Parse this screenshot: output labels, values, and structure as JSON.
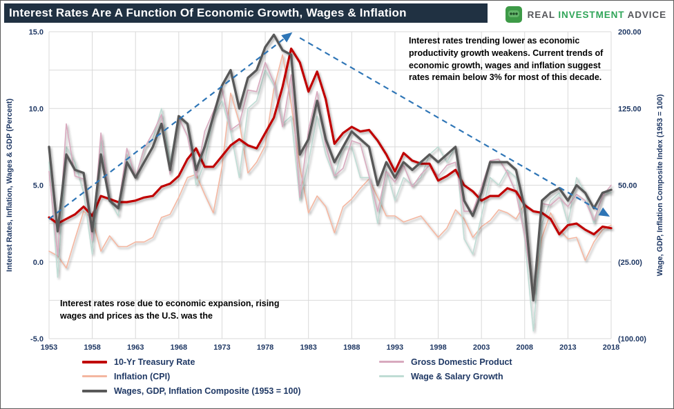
{
  "header": {
    "title": "Interest Rates Are A Function Of Economic Growth, Wages & Inflation",
    "logo": {
      "word1": "REAL",
      "word2": "INVESTMENT",
      "word3": "ADVICE"
    }
  },
  "annotations": {
    "top_right": "Interest rates trending lower as economic productivity growth weakens.   Current trends of economic growth, wages and inflation suggest rates remain below 3% for most of this decade.",
    "bottom_left": "Interest rates rose due to  economic  expansion, rising wages and prices as the U.S. was the"
  },
  "legend": [
    {
      "key": "treasury",
      "label": "10-Yr Treasury Rate",
      "color": "#C00000",
      "thick": 4
    },
    {
      "key": "gdp",
      "label": "Gross Domestic Product",
      "color": "#D8A9BE",
      "thick": 2.5
    },
    {
      "key": "inflation",
      "label": "Inflation (CPI)",
      "color": "#F4B6A0",
      "thick": 2.5
    },
    {
      "key": "wages",
      "label": "Wage & Salary Growth",
      "color": "#BFDCD4",
      "thick": 2.5
    },
    {
      "key": "composite",
      "label": "Wages, GDP, Inflation Composite (1953 = 100)",
      "color": "#595959",
      "thick": 4
    }
  ],
  "chart_data": {
    "type": "line",
    "title": "Interest Rates Are A Function Of Economic Growth, Wages & Inflation",
    "left_axis": {
      "label": "Interest Rates, Inflation, Wages & GDP (Percent)",
      "range": [
        -5,
        15
      ],
      "ticks": [
        15,
        10,
        5,
        0,
        -5
      ],
      "tick_labels": [
        "15.0",
        "10.0",
        "5.0",
        "0.0",
        "-5.0"
      ]
    },
    "right_axis": {
      "label": "Wage, GDP, Inflation Composite Index (1953 = 100)",
      "range": [
        -100,
        200
      ],
      "ticks": [
        200,
        125,
        50,
        -25,
        -100
      ],
      "tick_labels": [
        "200.00",
        "125.00",
        "50.00",
        "(25.00)",
        "(100.00)"
      ]
    },
    "x_ticks": [
      1953,
      1958,
      1963,
      1968,
      1973,
      1978,
      1983,
      1988,
      1993,
      1998,
      2003,
      2008,
      2013,
      2018
    ],
    "grid": {
      "h_step": 2.5,
      "color": "#d9d9d9"
    },
    "x": [
      1953,
      1954,
      1955,
      1956,
      1957,
      1958,
      1959,
      1960,
      1961,
      1962,
      1963,
      1964,
      1965,
      1966,
      1967,
      1968,
      1969,
      1970,
      1971,
      1972,
      1973,
      1974,
      1975,
      1976,
      1977,
      1978,
      1979,
      1980,
      1981,
      1982,
      1983,
      1984,
      1985,
      1986,
      1987,
      1988,
      1989,
      1990,
      1991,
      1992,
      1993,
      1994,
      1995,
      1996,
      1997,
      1998,
      1999,
      2000,
      2001,
      2002,
      2003,
      2004,
      2005,
      2006,
      2007,
      2008,
      2009,
      2010,
      2011,
      2012,
      2013,
      2014,
      2015,
      2016,
      2017,
      2018
    ],
    "series": [
      {
        "name": "Inflation (CPI)",
        "color": "#F4B6A0",
        "width": 1.6,
        "axis": "left",
        "values": [
          0.7,
          0.4,
          -0.4,
          1.5,
          3.3,
          2.8,
          0.7,
          1.7,
          1.0,
          1.0,
          1.3,
          1.3,
          1.6,
          2.9,
          3.1,
          4.2,
          5.5,
          5.7,
          4.4,
          3.2,
          6.2,
          11.0,
          9.1,
          5.8,
          6.5,
          7.6,
          11.3,
          13.5,
          10.3,
          6.2,
          3.2,
          4.3,
          3.6,
          1.9,
          3.6,
          4.1,
          4.8,
          5.4,
          4.2,
          3.0,
          3.0,
          2.6,
          2.8,
          3.0,
          2.3,
          1.6,
          2.2,
          3.4,
          2.8,
          1.6,
          2.3,
          2.7,
          3.4,
          3.2,
          2.8,
          3.8,
          -2.0,
          1.6,
          3.2,
          2.1,
          1.5,
          1.6,
          0.1,
          1.3,
          2.1,
          2.4
        ]
      },
      {
        "name": "Wage & Salary Growth",
        "color": "#BFDCD4",
        "width": 1.6,
        "axis": "left",
        "values": [
          6.5,
          -1.0,
          7.5,
          6.5,
          4.5,
          0.5,
          8.0,
          4.0,
          3.0,
          7.0,
          5.5,
          7.5,
          8.0,
          10.0,
          6.5,
          9.5,
          9.0,
          5.0,
          6.5,
          9.5,
          10.5,
          8.5,
          5.5,
          10.0,
          10.5,
          12.5,
          11.5,
          9.0,
          9.5,
          4.0,
          6.5,
          9.5,
          7.0,
          5.5,
          7.5,
          7.5,
          5.5,
          5.5,
          2.5,
          6.0,
          4.0,
          5.5,
          5.0,
          5.5,
          7.0,
          7.5,
          6.5,
          7.5,
          1.5,
          0.5,
          3.0,
          5.5,
          5.0,
          6.0,
          5.5,
          1.5,
          -4.5,
          2.5,
          4.0,
          4.5,
          2.5,
          5.5,
          4.5,
          2.5,
          4.5,
          4.5
        ]
      },
      {
        "name": "Gross Domestic Product",
        "color": "#D8A9BE",
        "width": 1.6,
        "axis": "left",
        "values": [
          5.9,
          0.4,
          9.0,
          5.6,
          5.4,
          1.4,
          8.4,
          4.0,
          3.6,
          7.4,
          5.5,
          7.4,
          8.4,
          9.6,
          5.7,
          9.4,
          8.2,
          5.5,
          8.5,
          9.8,
          11.3,
          8.6,
          9.0,
          11.2,
          11.1,
          13.0,
          11.7,
          8.8,
          12.2,
          4.2,
          8.6,
          11.1,
          7.6,
          5.6,
          6.1,
          7.9,
          7.7,
          5.6,
          3.3,
          5.9,
          5.2,
          6.3,
          4.9,
          5.7,
          6.3,
          5.6,
          6.3,
          6.5,
          3.3,
          3.3,
          4.9,
          6.6,
          6.7,
          5.8,
          4.5,
          1.7,
          -2.0,
          3.8,
          3.7,
          4.2,
          3.6,
          4.4,
          4.0,
          2.7,
          4.3,
          5.0
        ]
      },
      {
        "name": "10-Yr Treasury Rate",
        "color": "#C00000",
        "width": 3.2,
        "axis": "left",
        "values": [
          2.9,
          2.5,
          2.8,
          3.1,
          3.6,
          3.0,
          4.3,
          4.1,
          3.9,
          3.9,
          4.0,
          4.2,
          4.3,
          4.9,
          5.1,
          5.6,
          6.7,
          7.4,
          6.2,
          6.2,
          6.9,
          7.6,
          8.0,
          7.6,
          7.4,
          8.4,
          9.4,
          11.4,
          13.9,
          13.0,
          11.1,
          12.4,
          10.6,
          7.7,
          8.4,
          8.8,
          8.5,
          8.6,
          7.9,
          7.0,
          5.9,
          7.1,
          6.6,
          6.4,
          6.4,
          5.3,
          5.6,
          6.0,
          5.0,
          4.6,
          4.0,
          4.3,
          4.3,
          4.8,
          4.6,
          3.7,
          3.3,
          3.2,
          2.8,
          1.8,
          2.4,
          2.5,
          2.1,
          1.8,
          2.3,
          2.2
        ]
      },
      {
        "name": "Wages, GDP, Inflation Composite (1953 = 100)",
        "color": "#595959",
        "width": 3.4,
        "axis": "right",
        "values": [
          87.5,
          5,
          80,
          65,
          62,
          5,
          80,
          35,
          27.5,
          72.5,
          57.5,
          72.5,
          87.5,
          110,
          65,
          117.5,
          110,
          65,
          87.5,
          117.5,
          147.5,
          162.5,
          125,
          155,
          162.5,
          185,
          197,
          182,
          177.5,
          80,
          95,
          132.5,
          95,
          72.5,
          87.5,
          102.5,
          95,
          87.5,
          50,
          72.5,
          57.5,
          72.5,
          65,
          72.5,
          80,
          72.5,
          80,
          87.5,
          35,
          20,
          42.5,
          72.5,
          72.5,
          72.5,
          65,
          27.5,
          -62.5,
          35,
          42.5,
          47,
          35,
          50,
          42.5,
          27.5,
          42.5,
          45.5
        ]
      }
    ],
    "trendlines": [
      {
        "from": [
          1953,
          2.8
        ],
        "to": [
          1981,
          14.9
        ],
        "color": "#2E75B6"
      },
      {
        "from": [
          1982,
          14.6
        ],
        "to": [
          2017.7,
          3.0
        ],
        "color": "#2E75B6"
      }
    ]
  }
}
